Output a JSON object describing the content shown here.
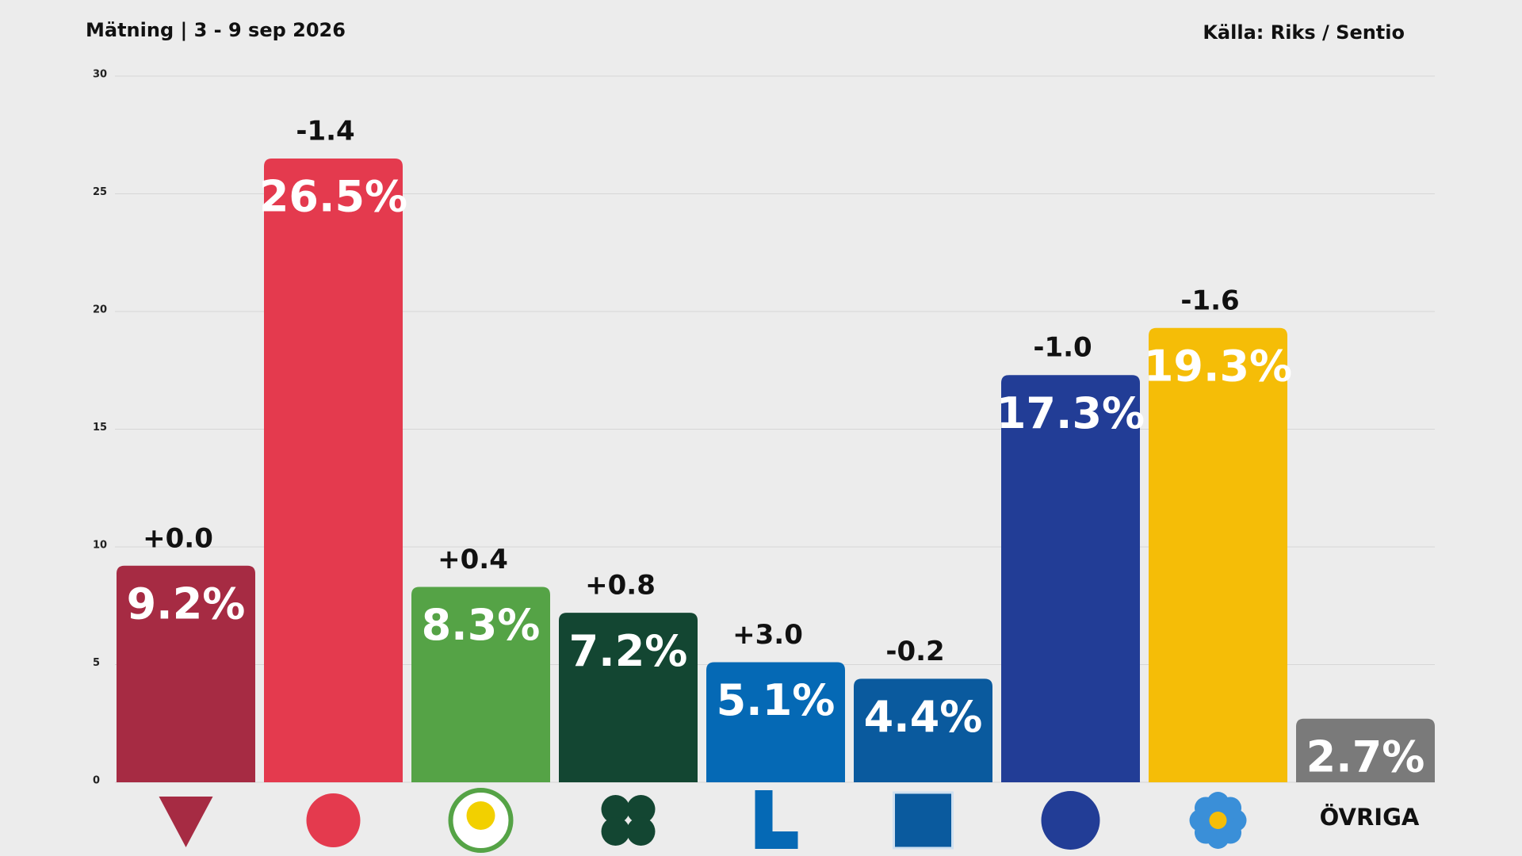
{
  "chart_data": {
    "type": "bar",
    "title": "Mätning  | 3 - 9 sep 2026",
    "source": "Källa: Riks / Sentio",
    "categories": [
      null,
      null,
      null,
      null,
      null,
      null,
      null,
      null,
      "ÖVRIGA"
    ],
    "values": [
      9.2,
      26.5,
      8.3,
      7.2,
      5.1,
      4.4,
      17.3,
      19.3,
      2.7
    ],
    "value_labels": [
      "9.2%",
      "26.5%",
      "8.3%",
      "7.2%",
      "5.1%",
      "4.4%",
      "17.3%",
      "19.3%",
      "2.7%"
    ],
    "changes": [
      "+0.0",
      "-1.4",
      "+0.4",
      "+0.8",
      "+3.0",
      "-0.2",
      "-1.0",
      "-1.6",
      null
    ],
    "colors": [
      "#a62b43",
      "#e43a4e",
      "#55a346",
      "#134632",
      "#0569b5",
      "#0a5a9e",
      "#223d96",
      "#f5bd07",
      "#7a7a7a"
    ],
    "ylim": [
      0,
      30
    ],
    "yticks": [
      0,
      5,
      10,
      15,
      20,
      25,
      30
    ],
    "grid": true
  }
}
